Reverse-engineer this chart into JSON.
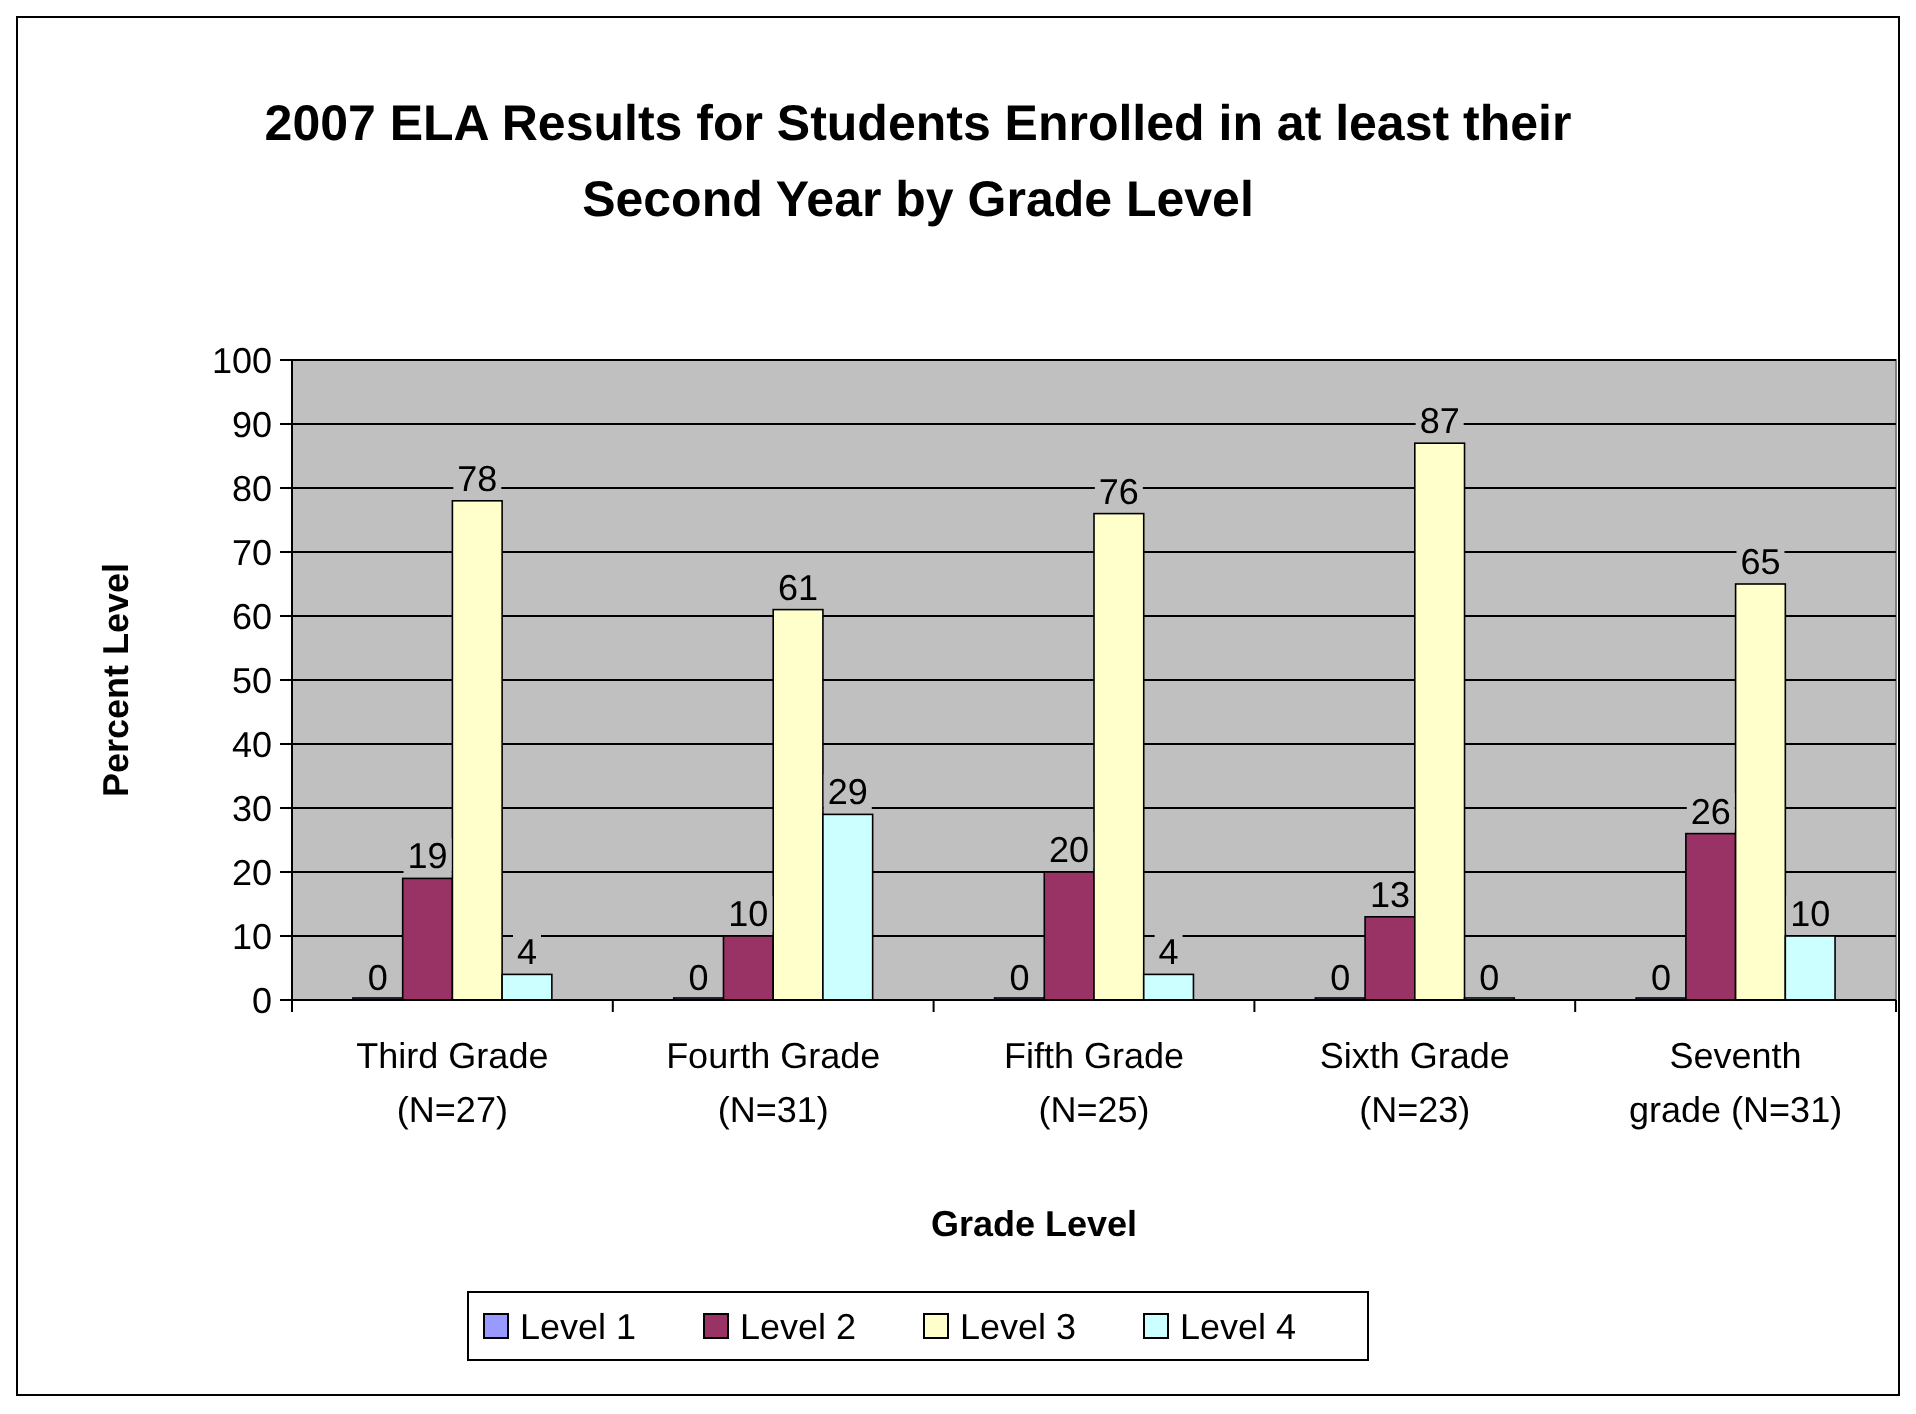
{
  "chart_data": {
    "type": "bar",
    "title": "2007 ELA Results for Students Enrolled in at least their Second Year by Grade Level",
    "xlabel": "Grade Level",
    "ylabel": "Percent Level",
    "categories": [
      "Third Grade (N=27)",
      "Fourth Grade (N=31)",
      "Fifth Grade (N=25)",
      "Sixth Grade (N=23)",
      "Seventh grade (N=31)"
    ],
    "series": [
      {
        "name": "Level 1",
        "color": "#9999ff",
        "values": [
          0,
          0,
          0,
          0,
          0
        ]
      },
      {
        "name": "Level 2",
        "color": "#993366",
        "values": [
          19,
          10,
          20,
          13,
          26
        ]
      },
      {
        "name": "Level 3",
        "color": "#ffffcc",
        "values": [
          78,
          61,
          76,
          87,
          65
        ]
      },
      {
        "name": "Level 4",
        "color": "#ccffff",
        "values": [
          4,
          29,
          4,
          0,
          10
        ]
      }
    ],
    "ylim": [
      0,
      100
    ],
    "yticks": [
      0,
      10,
      20,
      30,
      40,
      50,
      60,
      70,
      80,
      90,
      100
    ],
    "grid": "y",
    "legend": "bottom",
    "data_labels": true
  }
}
